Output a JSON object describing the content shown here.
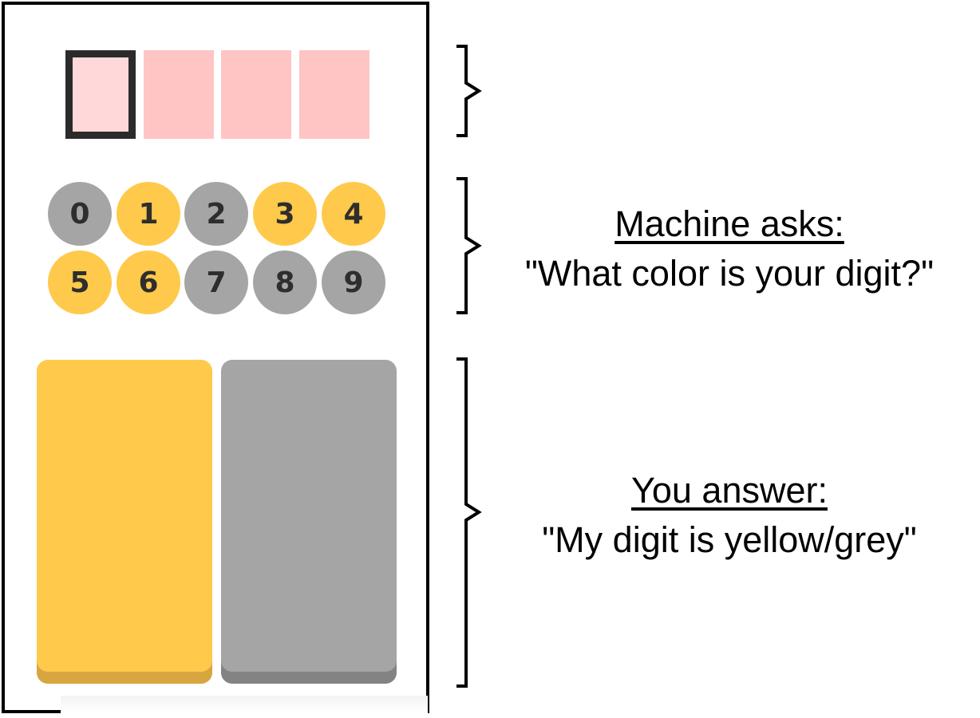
{
  "code_boxes": [
    {
      "state": "active"
    },
    {
      "state": "empty"
    },
    {
      "state": "empty"
    },
    {
      "state": "empty"
    }
  ],
  "digits": [
    {
      "label": "0",
      "color": "grey"
    },
    {
      "label": "1",
      "color": "yellow"
    },
    {
      "label": "2",
      "color": "grey"
    },
    {
      "label": "3",
      "color": "yellow"
    },
    {
      "label": "4",
      "color": "yellow"
    },
    {
      "label": "5",
      "color": "yellow"
    },
    {
      "label": "6",
      "color": "yellow"
    },
    {
      "label": "7",
      "color": "grey"
    },
    {
      "label": "8",
      "color": "grey"
    },
    {
      "label": "9",
      "color": "grey"
    }
  ],
  "colors": {
    "yellow": "#ffc94b",
    "grey": "#a5a5a5",
    "code_box": "#ffc4c4",
    "code_box_active": "#ffd9d9"
  },
  "answer_buttons": [
    {
      "name": "yellow-answer-button",
      "color": "yellow"
    },
    {
      "name": "grey-answer-button",
      "color": "grey"
    }
  ],
  "annotations": {
    "machine": {
      "heading": "Machine asks:",
      "text": "\"What color is your digit?\""
    },
    "user": {
      "heading": "You answer:",
      "text": "\"My digit is yellow/grey\""
    }
  }
}
